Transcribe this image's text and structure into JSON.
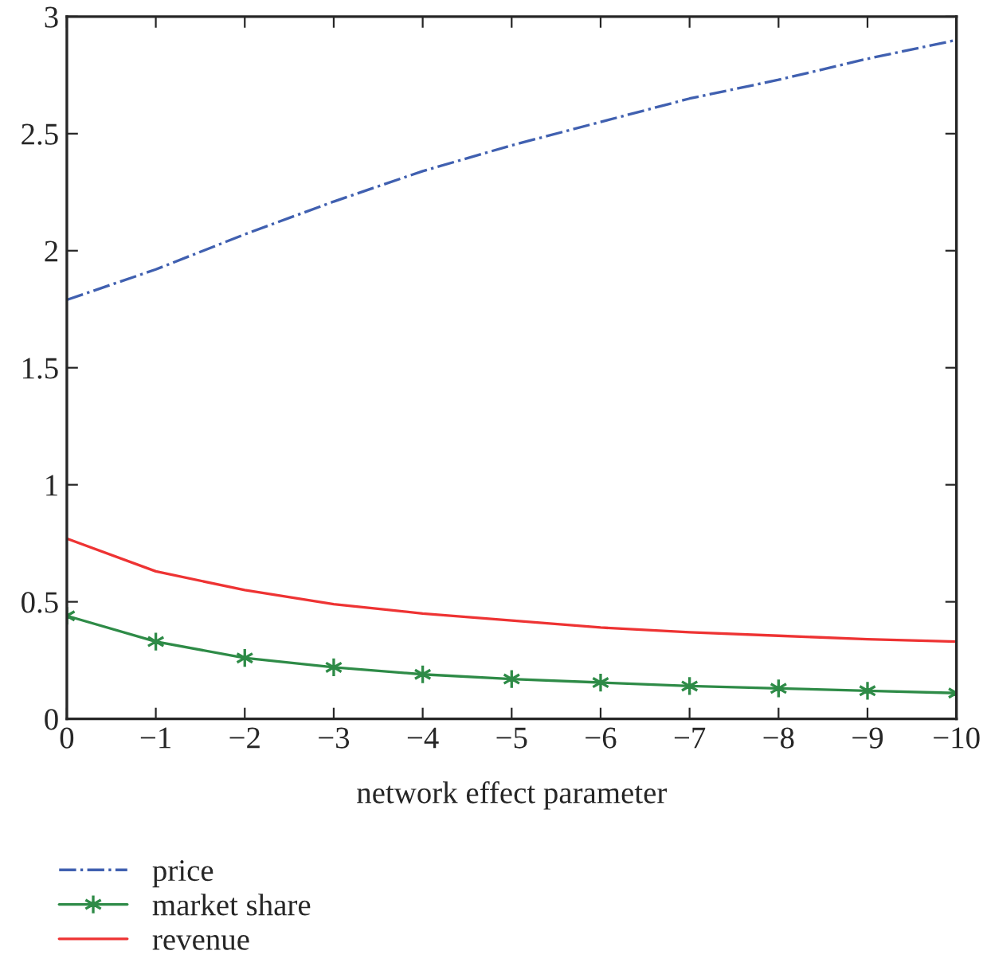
{
  "chart_data": {
    "type": "line",
    "xlabel": "network effect parameter",
    "x": [
      0,
      -1,
      -2,
      -3,
      -4,
      -5,
      -6,
      -7,
      -8,
      -9,
      -10
    ],
    "series": [
      {
        "name": "price",
        "color": "#4060b0",
        "line_style": "dashdot",
        "marker": "none",
        "values": [
          1.79,
          1.92,
          2.07,
          2.21,
          2.34,
          2.45,
          2.55,
          2.65,
          2.73,
          2.82,
          2.9
        ]
      },
      {
        "name": "market share",
        "color": "#2e8b47",
        "line_style": "solid",
        "marker": "cross",
        "values": [
          0.44,
          0.33,
          0.26,
          0.22,
          0.19,
          0.17,
          0.155,
          0.14,
          0.13,
          0.12,
          0.11
        ]
      },
      {
        "name": "revenue",
        "color": "#ee3333",
        "line_style": "solid",
        "marker": "none",
        "values": [
          0.77,
          0.63,
          0.55,
          0.49,
          0.45,
          0.42,
          0.39,
          0.37,
          0.355,
          0.34,
          0.33
        ]
      }
    ],
    "xlim": [
      0,
      -10
    ],
    "xticks": [
      0,
      {
        "value": -1,
        "label": "−1"
      },
      {
        "value": -2,
        "label": "−2"
      },
      {
        "value": -3,
        "label": "−3"
      },
      {
        "value": -4,
        "label": "−4"
      },
      {
        "value": -5,
        "label": "−5"
      },
      {
        "value": -6,
        "label": "−6"
      },
      {
        "value": -7,
        "label": "−7"
      },
      {
        "value": -8,
        "label": "−8"
      },
      {
        "value": -9,
        "label": "−9"
      },
      {
        "value": -10,
        "label": "−10"
      }
    ],
    "ylim": [
      0,
      3
    ],
    "yticks": [
      0,
      0.5,
      1,
      1.5,
      2,
      2.5,
      3
    ],
    "grid": false,
    "legend": "bottom left"
  }
}
